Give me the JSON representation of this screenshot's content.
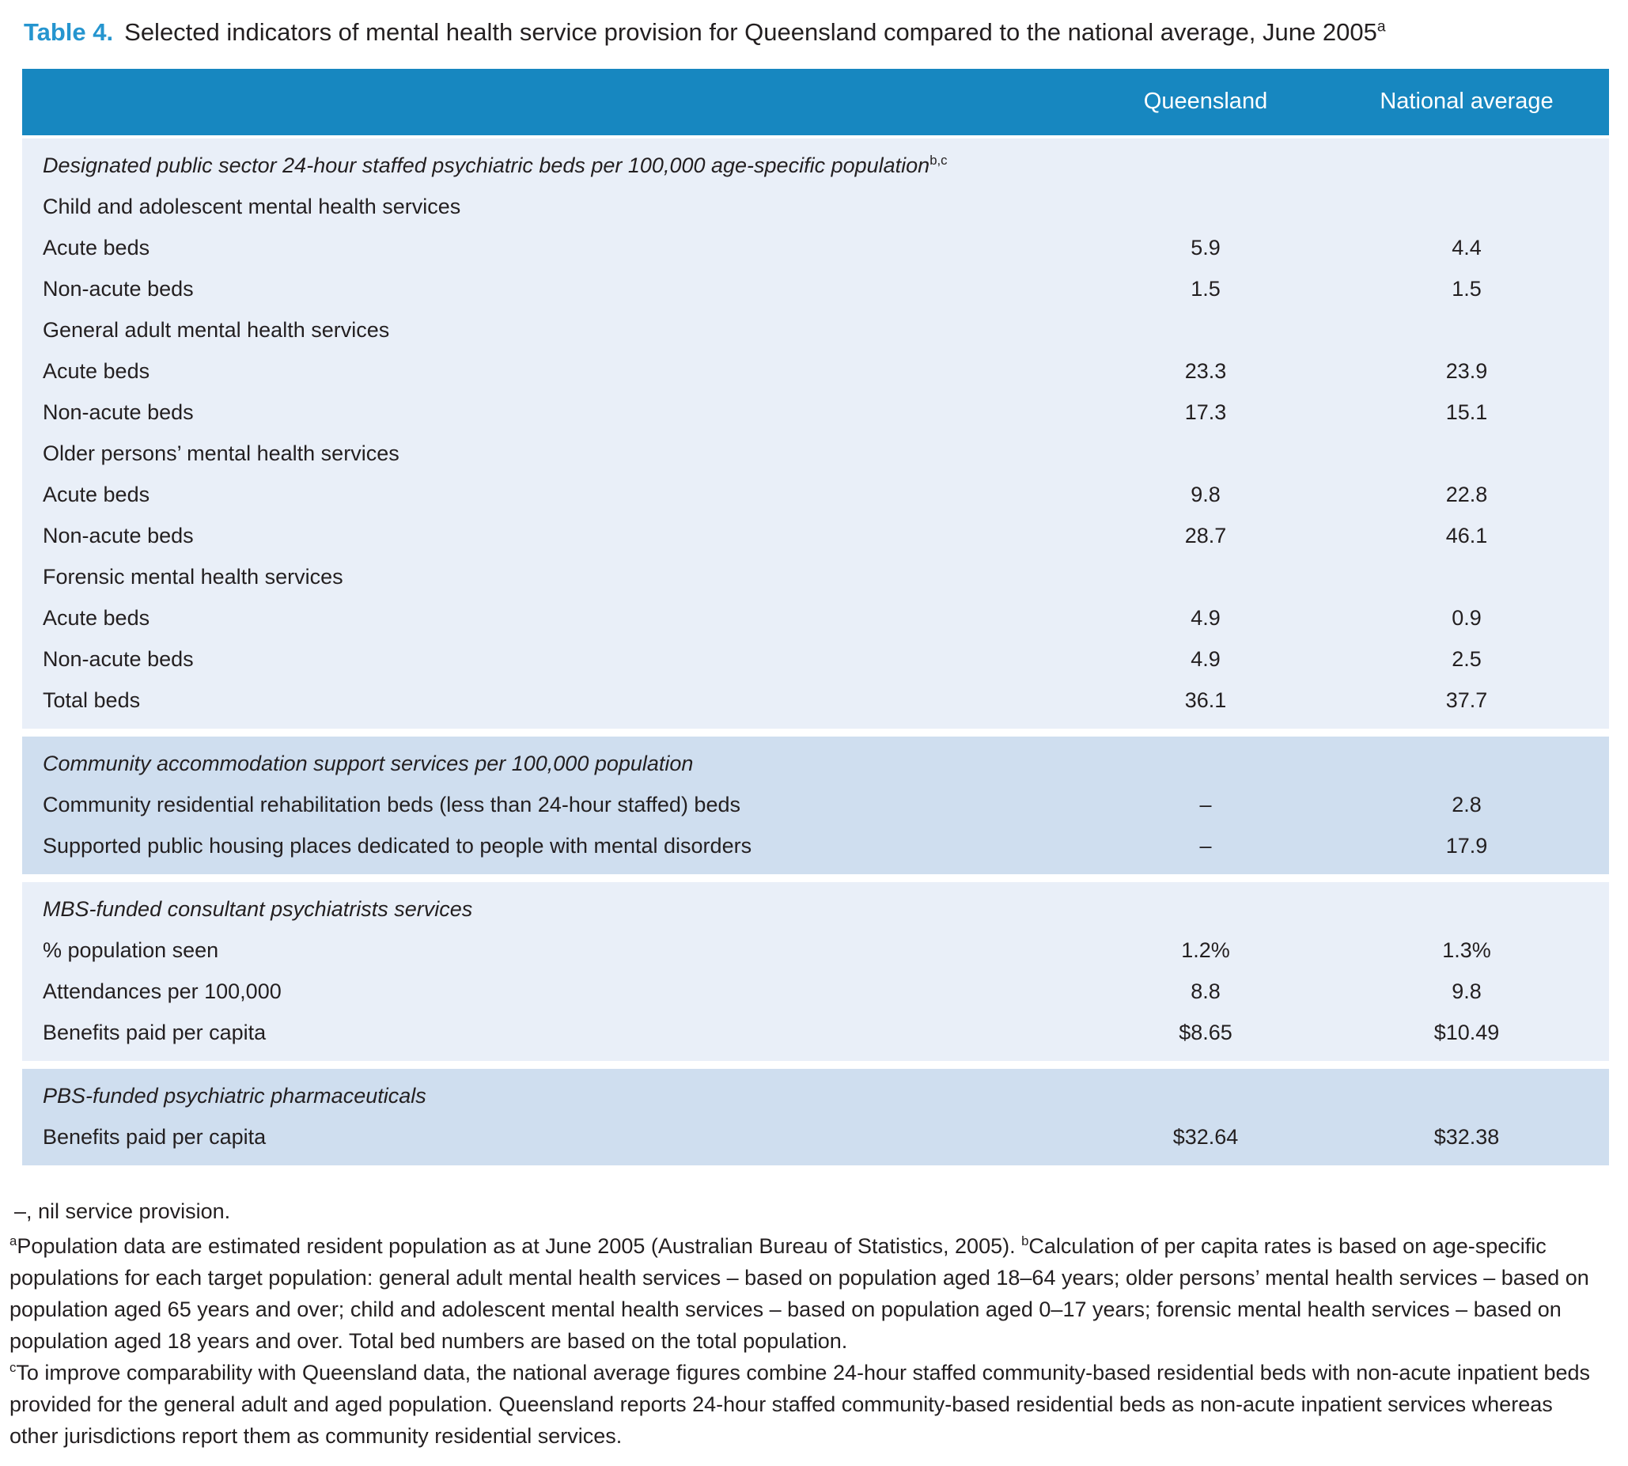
{
  "title": {
    "label": "Table 4.",
    "text": "Selected indicators of mental health service provision for Queensland compared to the national average, June 2005",
    "sup": "a"
  },
  "colors": {
    "header_blue": "#1787c0",
    "title_accent_blue": "#2595cf",
    "section_light": "#e9eff8",
    "section_dark": "#cfdeef",
    "text": "#231f20"
  },
  "table": {
    "columns": {
      "q": "Queensland",
      "n": "National average"
    },
    "sections": [
      {
        "heading": "Designated public sector 24-hour staffed psychiatric beds per 100,000 age-specific population",
        "heading_sup": "b,c",
        "rows": [
          {
            "label": "Child and adolescent mental health services",
            "qld": "",
            "nat": ""
          },
          {
            "label": "Acute beds",
            "qld": "5.9",
            "nat": "4.4"
          },
          {
            "label": "Non-acute beds",
            "qld": "1.5",
            "nat": "1.5"
          },
          {
            "label": "General adult mental health services",
            "qld": "",
            "nat": ""
          },
          {
            "label": "Acute beds",
            "qld": "23.3",
            "nat": "23.9"
          },
          {
            "label": "Non-acute beds",
            "qld": "17.3",
            "nat": "15.1"
          },
          {
            "label": "Older persons’ mental health services",
            "qld": "",
            "nat": ""
          },
          {
            "label": "Acute beds",
            "qld": "9.8",
            "nat": "22.8"
          },
          {
            "label": "Non-acute beds",
            "qld": "28.7",
            "nat": "46.1"
          },
          {
            "label": "Forensic mental health services",
            "qld": "",
            "nat": ""
          },
          {
            "label": "Acute beds",
            "qld": "4.9",
            "nat": "0.9"
          },
          {
            "label": "Non-acute beds",
            "qld": "4.9",
            "nat": "2.5"
          },
          {
            "label": "Total beds",
            "qld": "36.1",
            "nat": "37.7"
          }
        ]
      },
      {
        "heading": "Community accommodation support services per 100,000 population",
        "rows": [
          {
            "label": "Community residential rehabilitation beds (less than 24-hour staffed) beds",
            "qld": "–",
            "nat": "2.8"
          },
          {
            "label": "Supported public housing places dedicated to people with mental disorders",
            "qld": "–",
            "nat": "17.9"
          }
        ]
      },
      {
        "heading": "MBS-funded consultant psychiatrists services",
        "rows": [
          {
            "label": "% population seen",
            "qld": "1.2%",
            "nat": "1.3%"
          },
          {
            "label": "Attendances per 100,000",
            "qld": "8.8",
            "nat": "9.8"
          },
          {
            "label": "Benefits paid per capita",
            "qld": "$8.65",
            "nat": "$10.49"
          }
        ]
      },
      {
        "heading": "PBS-funded psychiatric pharmaceuticals",
        "rows": [
          {
            "label": "Benefits paid per capita",
            "qld": "$32.64",
            "nat": "$32.38"
          }
        ]
      }
    ]
  },
  "notes": {
    "dash_note": "–, nil service provision.",
    "fn_a": {
      "sup": "a",
      "text": "Population data are estimated resident population as at June 2005 (Australian Bureau of Statistics, 2005). "
    },
    "fn_b": {
      "sup": "b",
      "text": "Calculation of per capita rates is based on age-specific populations for each target population: general adult mental health services – based on population aged 18–64 years; older persons’ mental health services – based on population aged 65 years and over; child and adolescent mental health services – based on population aged 0–17 years; forensic mental health services – based on population aged 18 years and over. Total bed numbers are based on the total population."
    },
    "fn_c": {
      "sup": "c",
      "text": "To improve comparability with Queensland data, the national average figures combine 24-hour staffed community-based residential beds with non-acute inpatient beds provided for the general adult and aged population. Queensland reports 24-hour staffed community-based residential beds as non-acute inpatient services whereas other jurisdictions report them as community residential services."
    }
  }
}
